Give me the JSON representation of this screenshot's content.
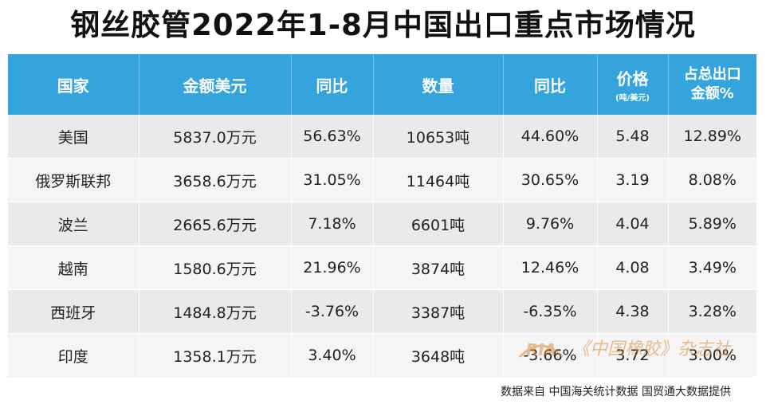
{
  "title": "钢丝胶管2022年1-8月中国出口重点市场情况",
  "headers": {
    "country": "国家",
    "amount": "金额美元",
    "yoy1": "同比",
    "quantity": "数量",
    "yoy2": "同比",
    "price": "价格",
    "price_unit": "(吨/美元)",
    "share_line1": "占总出口",
    "share_line2": "金额%"
  },
  "rows": [
    {
      "country": "美国",
      "amount": "5837.0万元",
      "yoy1": "56.63%",
      "quantity": "10653吨",
      "yoy2": "44.60%",
      "price": "5.48",
      "share": "12.89%"
    },
    {
      "country": "俄罗斯联邦",
      "amount": "3658.6万元",
      "yoy1": "31.05%",
      "quantity": "11464吨",
      "yoy2": "30.65%",
      "price": "3.19",
      "share": "8.08%"
    },
    {
      "country": "波兰",
      "amount": "2665.6万元",
      "yoy1": "7.18%",
      "quantity": "6601吨",
      "yoy2": "9.76%",
      "price": "4.04",
      "share": "5.89%"
    },
    {
      "country": "越南",
      "amount": "1580.6万元",
      "yoy1": "21.96%",
      "quantity": "3874吨",
      "yoy2": "12.46%",
      "price": "4.08",
      "share": "3.49%"
    },
    {
      "country": "西班牙",
      "amount": "1484.8万元",
      "yoy1": "-3.76%",
      "quantity": "3387吨",
      "yoy2": "-6.35%",
      "price": "4.38",
      "share": "3.28%"
    },
    {
      "country": "印度",
      "amount": "1358.1万元",
      "yoy1": "3.40%",
      "quantity": "3648吨",
      "yoy2": "-3.66%",
      "price": "3.72",
      "share": "3.00%"
    }
  ],
  "footer": "数据来自 中国海关统计数据 国贸通大数据提供",
  "watermark": {
    "logo_text": "RIA",
    "text": "《中国橡胶》杂志社"
  },
  "colors": {
    "header_bg": "#35a4dc",
    "row_odd": "#e9eaec",
    "row_even": "#f5f5f6",
    "watermark": "#d98a3a"
  }
}
